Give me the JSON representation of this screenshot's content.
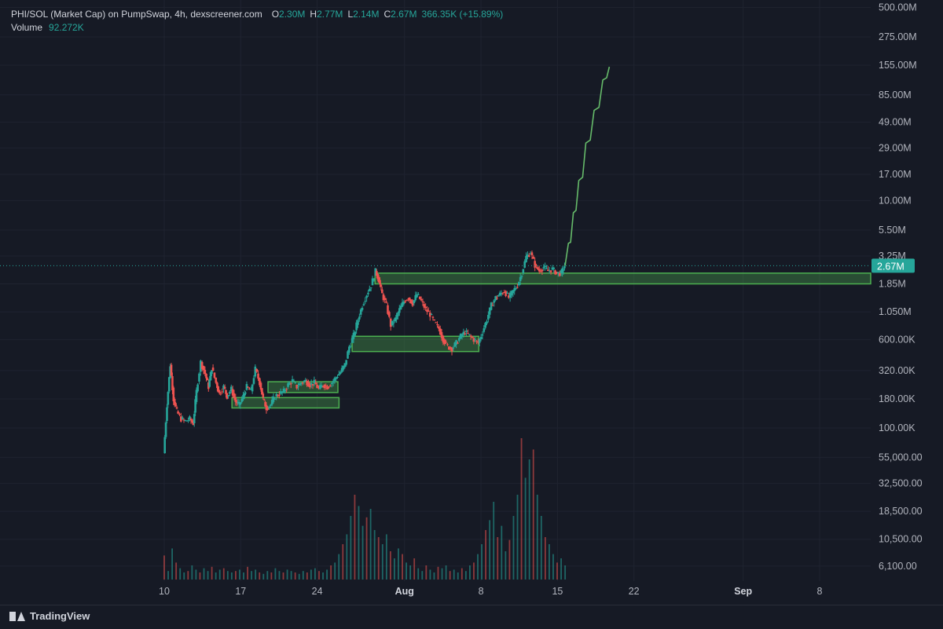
{
  "legend": {
    "symbol": "PHI/SOL (Market Cap) on PumpSwap, 4h, dexscreener.com",
    "o_label": "O",
    "o_value": "2.30M",
    "h_label": "H",
    "h_value": "2.77M",
    "l_label": "L",
    "l_value": "2.14M",
    "c_label": "C",
    "c_value": "2.67M",
    "change": "366.35K (+15.89%)",
    "volume_label": "Volume",
    "volume_value": "92.272K"
  },
  "footer": {
    "brand": "TradingView"
  },
  "colors": {
    "up": "#26a69a",
    "down": "#ef5350",
    "zone": "#4caf50",
    "projection": "#66bb6a",
    "background": "#161a25"
  },
  "chart_data": {
    "type": "candlestick",
    "timeframe": "4h",
    "y_scale": "log",
    "y_ticks": [
      {
        "v": 500000000,
        "label": "500.00M"
      },
      {
        "v": 275000000,
        "label": "275.00M"
      },
      {
        "v": 155000000,
        "label": "155.00M"
      },
      {
        "v": 85000000,
        "label": "85.00M"
      },
      {
        "v": 49000000,
        "label": "49.00M"
      },
      {
        "v": 29000000,
        "label": "29.00M"
      },
      {
        "v": 17000000,
        "label": "17.00M"
      },
      {
        "v": 10000000,
        "label": "10.00M"
      },
      {
        "v": 5500000,
        "label": "5.50M"
      },
      {
        "v": 3250000,
        "label": "3.25M"
      },
      {
        "v": 1850000,
        "label": "1.85M"
      },
      {
        "v": 1050000,
        "label": "1.050M"
      },
      {
        "v": 600000,
        "label": "600.00K"
      },
      {
        "v": 320000,
        "label": "320.00K"
      },
      {
        "v": 180000,
        "label": "180.00K"
      },
      {
        "v": 100000,
        "label": "100.00K"
      },
      {
        "v": 55000,
        "label": "55,000.00"
      },
      {
        "v": 32500,
        "label": "32,500.00"
      },
      {
        "v": 18500,
        "label": "18,500.00"
      },
      {
        "v": 10500,
        "label": "10,500.00"
      },
      {
        "v": 6100,
        "label": "6,100.00"
      }
    ],
    "x_ticks": [
      {
        "day": 10,
        "label": "10",
        "bold": false
      },
      {
        "day": 17,
        "label": "17",
        "bold": false
      },
      {
        "day": 24,
        "label": "24",
        "bold": false
      },
      {
        "day": 32,
        "label": "Aug",
        "bold": true
      },
      {
        "day": 39,
        "label": "8",
        "bold": false
      },
      {
        "day": 46,
        "label": "15",
        "bold": false
      },
      {
        "day": 53,
        "label": "22",
        "bold": false
      },
      {
        "day": 63,
        "label": "Sep",
        "bold": true
      },
      {
        "day": 70,
        "label": "8",
        "bold": false
      }
    ],
    "last_price": {
      "v": 2670000,
      "label": "2.67M"
    },
    "path": [
      [
        10.0,
        60000
      ],
      [
        10.3,
        160000
      ],
      [
        10.6,
        360000
      ],
      [
        10.9,
        180000
      ],
      [
        11.2,
        140000
      ],
      [
        11.6,
        120000
      ],
      [
        12.0,
        115000
      ],
      [
        12.4,
        120000
      ],
      [
        12.7,
        110000
      ],
      [
        13.0,
        210000
      ],
      [
        13.4,
        380000
      ],
      [
        13.8,
        300000
      ],
      [
        14.1,
        230000
      ],
      [
        14.4,
        340000
      ],
      [
        14.8,
        250000
      ],
      [
        15.1,
        200000
      ],
      [
        15.5,
        230000
      ],
      [
        15.8,
        190000
      ],
      [
        16.2,
        220000
      ],
      [
        16.6,
        170000
      ],
      [
        16.9,
        160000
      ],
      [
        17.3,
        190000
      ],
      [
        17.6,
        230000
      ],
      [
        18.0,
        210000
      ],
      [
        18.4,
        330000
      ],
      [
        18.8,
        250000
      ],
      [
        19.1,
        180000
      ],
      [
        19.4,
        150000
      ],
      [
        19.8,
        160000
      ],
      [
        20.2,
        190000
      ],
      [
        20.6,
        200000
      ],
      [
        21.0,
        210000
      ],
      [
        21.4,
        240000
      ],
      [
        21.8,
        260000
      ],
      [
        22.2,
        230000
      ],
      [
        22.6,
        250000
      ],
      [
        23.0,
        260000
      ],
      [
        23.4,
        240000
      ],
      [
        23.8,
        250000
      ],
      [
        24.2,
        220000
      ],
      [
        24.6,
        240000
      ],
      [
        25.0,
        230000
      ],
      [
        25.4,
        250000
      ],
      [
        25.8,
        280000
      ],
      [
        26.2,
        310000
      ],
      [
        26.6,
        360000
      ],
      [
        27.0,
        520000
      ],
      [
        27.4,
        650000
      ],
      [
        27.8,
        900000
      ],
      [
        28.2,
        1200000
      ],
      [
        28.6,
        1500000
      ],
      [
        29.0,
        1800000
      ],
      [
        29.4,
        2400000
      ],
      [
        29.7,
        2000000
      ],
      [
        30.0,
        1500000
      ],
      [
        30.4,
        1200000
      ],
      [
        30.8,
        800000
      ],
      [
        31.2,
        900000
      ],
      [
        31.6,
        1100000
      ],
      [
        32.0,
        1300000
      ],
      [
        32.4,
        1400000
      ],
      [
        32.8,
        1250000
      ],
      [
        33.2,
        1500000
      ],
      [
        33.6,
        1300000
      ],
      [
        34.0,
        1100000
      ],
      [
        34.4,
        1000000
      ],
      [
        34.8,
        850000
      ],
      [
        35.2,
        750000
      ],
      [
        35.6,
        600000
      ],
      [
        36.0,
        520000
      ],
      [
        36.4,
        500000
      ],
      [
        36.8,
        560000
      ],
      [
        37.2,
        640000
      ],
      [
        37.6,
        700000
      ],
      [
        38.0,
        650000
      ],
      [
        38.4,
        600000
      ],
      [
        38.8,
        560000
      ],
      [
        39.2,
        700000
      ],
      [
        39.6,
        900000
      ],
      [
        40.0,
        1200000
      ],
      [
        40.4,
        1400000
      ],
      [
        40.8,
        1500000
      ],
      [
        41.2,
        1600000
      ],
      [
        41.6,
        1400000
      ],
      [
        42.0,
        1600000
      ],
      [
        42.4,
        1800000
      ],
      [
        42.8,
        2300000
      ],
      [
        43.2,
        3200000
      ],
      [
        43.6,
        3500000
      ],
      [
        44.0,
        2700000
      ],
      [
        44.4,
        2400000
      ],
      [
        44.8,
        2600000
      ],
      [
        45.2,
        2400000
      ],
      [
        45.6,
        2500000
      ],
      [
        46.0,
        2300000
      ],
      [
        46.4,
        2300000
      ],
      [
        46.7,
        2670000
      ]
    ],
    "volume_heights": [
      0.17,
      0.06,
      0.22,
      0.12,
      0.08,
      0.05,
      0.06,
      0.1,
      0.07,
      0.05,
      0.08,
      0.06,
      0.09,
      0.05,
      0.07,
      0.08,
      0.06,
      0.05,
      0.06,
      0.07,
      0.05,
      0.09,
      0.06,
      0.07,
      0.05,
      0.04,
      0.06,
      0.05,
      0.08,
      0.06,
      0.05,
      0.07,
      0.06,
      0.05,
      0.04,
      0.06,
      0.05,
      0.07,
      0.08,
      0.06,
      0.05,
      0.07,
      0.1,
      0.12,
      0.18,
      0.25,
      0.32,
      0.45,
      0.6,
      0.52,
      0.38,
      0.44,
      0.5,
      0.35,
      0.3,
      0.25,
      0.32,
      0.2,
      0.15,
      0.22,
      0.18,
      0.12,
      0.1,
      0.15,
      0.08,
      0.06,
      0.1,
      0.07,
      0.05,
      0.09,
      0.08,
      0.1,
      0.06,
      0.07,
      0.05,
      0.08,
      0.06,
      0.1,
      0.12,
      0.18,
      0.25,
      0.35,
      0.42,
      0.55,
      0.3,
      0.38,
      0.2,
      0.28,
      0.45,
      0.6,
      1.0,
      0.72,
      0.85,
      0.92,
      0.6,
      0.45,
      0.3,
      0.25,
      0.18,
      0.12,
      0.15,
      0.1
    ],
    "zones": [
      {
        "day_from": 29.3,
        "day_to": 75.0,
        "low": 1850000,
        "high": 2300000
      },
      {
        "day_from": 27.2,
        "day_to": 38.8,
        "low": 470000,
        "high": 640000
      },
      {
        "day_from": 19.5,
        "day_to": 25.9,
        "low": 205000,
        "high": 255000
      },
      {
        "day_from": 16.2,
        "day_to": 26.0,
        "low": 150000,
        "high": 185000
      }
    ],
    "projection": [
      [
        46.7,
        2670000
      ],
      [
        47.0,
        4200000
      ],
      [
        47.2,
        4300000
      ],
      [
        47.45,
        7800000
      ],
      [
        47.7,
        8200000
      ],
      [
        47.95,
        15000000
      ],
      [
        48.3,
        16000000
      ],
      [
        48.6,
        32000000
      ],
      [
        49.0,
        34000000
      ],
      [
        49.35,
        62000000
      ],
      [
        49.8,
        66000000
      ],
      [
        50.15,
        115000000
      ],
      [
        50.5,
        120000000
      ],
      [
        50.75,
        150000000
      ]
    ]
  }
}
